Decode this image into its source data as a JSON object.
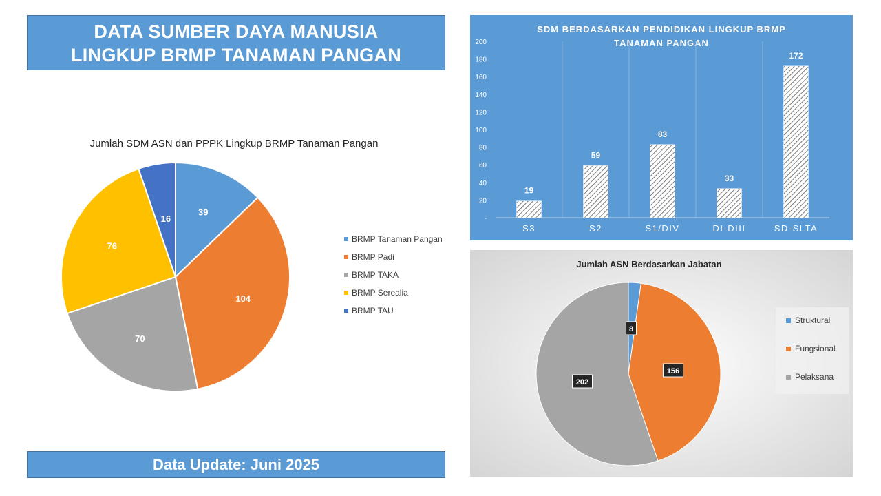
{
  "page": {
    "title_line1": "DATA SUMBER DAYA MANUSIA",
    "title_line2": "LINGKUP BRMP TANAMAN PANGAN",
    "footer": "Data Update: Juni 2025"
  },
  "chart_data": [
    {
      "type": "pie",
      "title": "Jumlah SDM ASN dan PPPK Lingkup BRMP Tanaman Pangan",
      "categories": [
        "BRMP Tanaman Pangan",
        "BRMP Padi",
        "BRMP TAKA",
        "BRMP Serealia",
        "BRMP TAU"
      ],
      "values": [
        39,
        104,
        70,
        76,
        16
      ],
      "colors": [
        "#5b9bd5",
        "#ed7d31",
        "#a5a5a5",
        "#ffc000",
        "#4472c4"
      ],
      "legend": "right"
    },
    {
      "type": "bar",
      "title_line1": "SDM BERDASARKAN PENDIDIKAN LINGKUP BRMP",
      "title_line2": "TANAMAN PANGAN",
      "categories": [
        "S3",
        "S2",
        "S1/DIV",
        "DI-DIII",
        "SD-SLTA"
      ],
      "values": [
        19,
        59,
        83,
        33,
        172
      ],
      "yticks": [
        "-",
        "20",
        "40",
        "60",
        "80",
        "100",
        "120",
        "140",
        "160",
        "180",
        "200"
      ],
      "ylim": [
        0,
        200
      ],
      "grid": "vertical",
      "background": "#5b9bd5"
    },
    {
      "type": "pie",
      "title": "Jumlah ASN Berdasarkan Jabatan",
      "categories": [
        "Struktural",
        "Fungsional",
        "Pelaksana"
      ],
      "values": [
        8,
        156,
        202
      ],
      "colors": [
        "#5b9bd5",
        "#ed7d31",
        "#a5a5a5"
      ],
      "legend": "right"
    }
  ]
}
